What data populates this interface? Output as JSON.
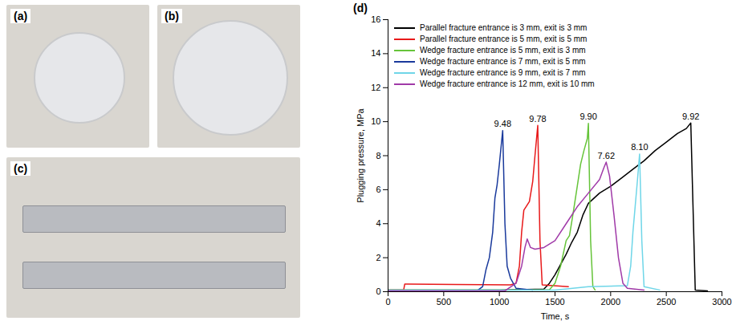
{
  "photo_panels": [
    {
      "label": "(a)"
    },
    {
      "label": "(b)"
    },
    {
      "label": "(c)"
    }
  ],
  "chart_data": {
    "type": "line",
    "panel_label": "(d)",
    "xlabel": "Time, s",
    "ylabel": "Plugging pressure, MPa",
    "xlim": [
      0,
      3000
    ],
    "xticks": [
      0,
      500,
      1000,
      1500,
      2000,
      2500,
      3000
    ],
    "ylim": [
      0,
      16
    ],
    "yticks": [
      0,
      2,
      4,
      6,
      8,
      10,
      12,
      14,
      16
    ],
    "grid": false,
    "legend": "upper left",
    "series": [
      {
        "name": "Parallel fracture entrance is 3 mm, exit is 3 mm",
        "color": "#000000",
        "peak_label": "9.92",
        "x": [
          0,
          500,
          1000,
          1400,
          1450,
          1500,
          1550,
          1600,
          1650,
          1700,
          1750,
          1800,
          1900,
          2000,
          2100,
          2200,
          2300,
          2400,
          2500,
          2600,
          2680,
          2720,
          2740,
          2760,
          2870
        ],
        "values": [
          0.1,
          0.1,
          0.1,
          0.15,
          0.5,
          1.0,
          1.6,
          2.2,
          2.9,
          3.5,
          4.5,
          5.2,
          5.8,
          6.2,
          6.7,
          7.2,
          7.7,
          8.3,
          8.8,
          9.3,
          9.6,
          9.92,
          5.0,
          0.1,
          0.05
        ]
      },
      {
        "name": "Parallel fracture entrance is 5 mm, exit is 5 mm",
        "color": "#e8191a",
        "peak_label": "9.78",
        "x": [
          0,
          140,
          150,
          600,
          1100,
          1150,
          1180,
          1200,
          1220,
          1240,
          1270,
          1300,
          1320,
          1345,
          1365,
          1385,
          1620
        ],
        "values": [
          0.1,
          0.1,
          0.45,
          0.42,
          0.4,
          0.5,
          1.5,
          3.5,
          4.8,
          5.0,
          5.3,
          6.5,
          8.0,
          9.78,
          3.0,
          0.4,
          0.3
        ]
      },
      {
        "name": "Wedge fracture entrance is 5 mm, exit is 3 mm",
        "color": "#66c43a",
        "peak_label": "9.90",
        "x": [
          0,
          1000,
          1450,
          1500,
          1550,
          1600,
          1630,
          1660,
          1700,
          1730,
          1760,
          1790,
          1800,
          1820,
          1840,
          1860
        ],
        "values": [
          0.1,
          0.1,
          0.12,
          0.5,
          1.5,
          3.0,
          3.3,
          4.5,
          6.2,
          7.5,
          8.3,
          9.0,
          9.9,
          3.0,
          0.3,
          0.1
        ]
      },
      {
        "name": "Wedge fracture entrance is 7 mm, exit is 5 mm",
        "color": "#1a3a9c",
        "peak_label": "9.48",
        "x": [
          0,
          800,
          850,
          880,
          910,
          940,
          960,
          980,
          1000,
          1030,
          1050,
          1070,
          1100,
          1150,
          1300
        ],
        "values": [
          0.05,
          0.05,
          0.3,
          1.3,
          2.0,
          3.5,
          5.5,
          6.3,
          7.5,
          9.48,
          4.0,
          1.5,
          0.8,
          0.2,
          0.1
        ]
      },
      {
        "name": "Wedge fracture entrance is 9 mm, exit is 7 mm",
        "color": "#6fd6e8",
        "peak_label": "8.10",
        "x": [
          0,
          1500,
          1800,
          2150,
          2180,
          2200,
          2220,
          2240,
          2260,
          2280,
          2300,
          2440
        ],
        "values": [
          0.1,
          0.1,
          0.3,
          0.35,
          1.5,
          3.5,
          5.0,
          6.5,
          8.1,
          3.0,
          0.3,
          0.1
        ]
      },
      {
        "name": "Wedge fracture entrance is 12 mm, exit is 10 mm",
        "color": "#a03aa8",
        "peak_label": "7.62",
        "x": [
          0,
          1050,
          1150,
          1200,
          1230,
          1250,
          1280,
          1320,
          1400,
          1500,
          1600,
          1700,
          1800,
          1900,
          1940,
          1960,
          1990,
          2030,
          2070,
          2110,
          2150,
          2300
        ],
        "values": [
          0.05,
          0.05,
          0.5,
          1.5,
          2.6,
          3.1,
          2.6,
          2.5,
          2.6,
          3.0,
          4.0,
          5.0,
          5.8,
          6.6,
          7.3,
          7.62,
          6.8,
          4.5,
          2.0,
          0.5,
          0.2,
          0.1
        ]
      }
    ]
  }
}
